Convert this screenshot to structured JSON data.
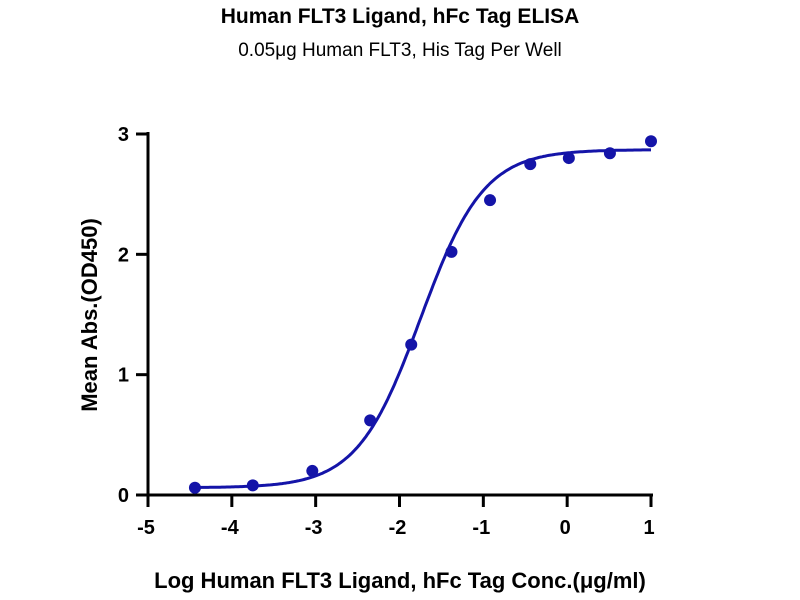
{
  "chart_data": {
    "type": "scatter",
    "title": "Human FLT3 Ligand, hFc Tag ELISA",
    "subtitle": "0.05μg Human FLT3, His Tag Per Well",
    "xlabel": "Log Human FLT3 Ligand, hFc Tag Conc.(μg/ml)",
    "ylabel": "Mean Abs.(OD450)",
    "xlim": [
      -5,
      1
    ],
    "ylim": [
      0,
      3
    ],
    "xticks": [
      "-5",
      "-4",
      "-3",
      "-2",
      "-1",
      "0",
      "1"
    ],
    "yticks": [
      "0",
      "1",
      "2",
      "3"
    ],
    "grid": false,
    "color": "#1414a8",
    "x": [
      -4.44,
      -3.75,
      -3.04,
      -2.35,
      -1.86,
      -1.38,
      -0.92,
      -0.44,
      0.02,
      0.51,
      1.0
    ],
    "y": [
      0.06,
      0.08,
      0.2,
      0.62,
      1.25,
      2.02,
      2.45,
      2.75,
      2.8,
      2.84,
      2.94
    ],
    "fit": {
      "model": "4PL",
      "bottom": 0.06,
      "top": 2.87,
      "logEC50": -1.75,
      "hill": 1.15
    }
  }
}
